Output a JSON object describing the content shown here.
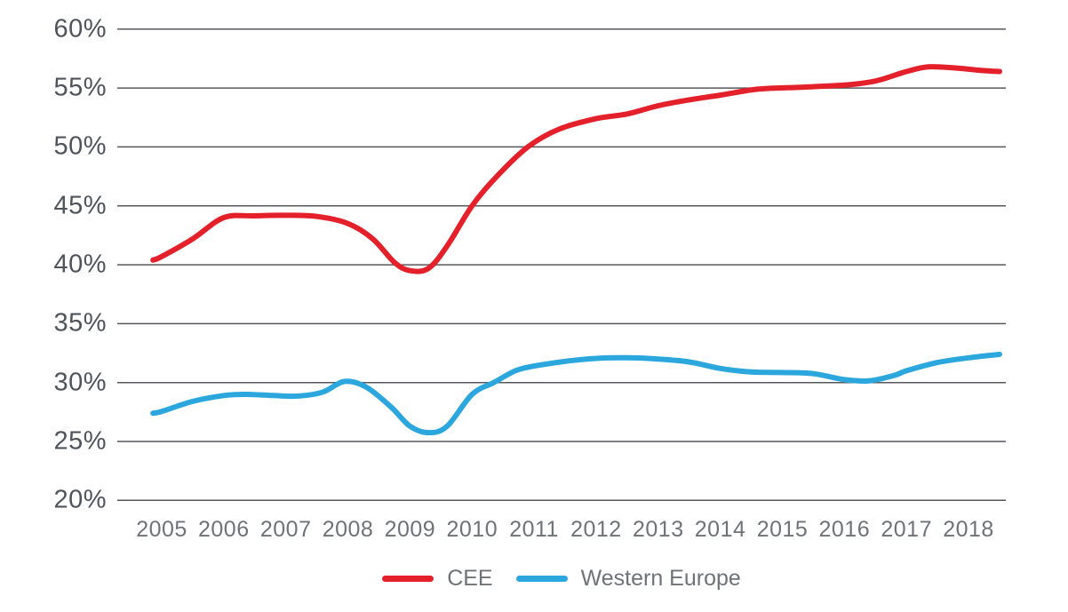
{
  "chart_data": {
    "type": "line",
    "title": "",
    "xlabel": "",
    "ylabel": "",
    "grid": true,
    "legend_position": "bottom-center",
    "ylim": [
      20,
      60
    ],
    "y_tick_labels": [
      "60%",
      "55%",
      "50%",
      "45%",
      "40%",
      "35%",
      "30%",
      "25%",
      "20%"
    ],
    "y_tick_values": [
      60,
      55,
      50,
      45,
      40,
      35,
      30,
      25,
      20
    ],
    "x_tick_labels": [
      "2005",
      "2006",
      "2007",
      "2008",
      "2009",
      "2010",
      "2011",
      "2012",
      "2013",
      "2014",
      "2015",
      "2016",
      "2017",
      "2018"
    ],
    "x_tick_values": [
      2005,
      2006,
      2007,
      2008,
      2009,
      2010,
      2011,
      2012,
      2013,
      2014,
      2015,
      2016,
      2017,
      2018
    ],
    "x_range_drawn": [
      2004.86,
      2018.5
    ],
    "unit": "percent",
    "series": [
      {
        "name": "CEE",
        "color": "#e4202b",
        "annual_values": [
          40.5,
          44.0,
          44.2,
          43.5,
          39.6,
          45.0,
          50.5,
          52.4,
          53.5,
          54.4,
          55.0,
          55.3,
          56.4,
          56.6
        ],
        "samples": [
          [
            2004.86,
            40.4
          ],
          [
            2005.0,
            40.7
          ],
          [
            2005.5,
            42.2
          ],
          [
            2006.0,
            44.0
          ],
          [
            2006.5,
            44.15
          ],
          [
            2007.0,
            44.2
          ],
          [
            2007.5,
            44.1
          ],
          [
            2008.0,
            43.5
          ],
          [
            2008.4,
            42.2
          ],
          [
            2008.75,
            40.2
          ],
          [
            2009.0,
            39.5
          ],
          [
            2009.3,
            39.7
          ],
          [
            2009.6,
            41.6
          ],
          [
            2010.0,
            45.0
          ],
          [
            2010.4,
            47.5
          ],
          [
            2010.9,
            50.0
          ],
          [
            2011.4,
            51.5
          ],
          [
            2012.0,
            52.4
          ],
          [
            2012.5,
            52.8
          ],
          [
            2013.0,
            53.5
          ],
          [
            2013.5,
            54.0
          ],
          [
            2014.0,
            54.4
          ],
          [
            2014.6,
            54.9
          ],
          [
            2015.2,
            55.05
          ],
          [
            2016.0,
            55.25
          ],
          [
            2016.5,
            55.6
          ],
          [
            2017.0,
            56.4
          ],
          [
            2017.35,
            56.8
          ],
          [
            2017.8,
            56.7
          ],
          [
            2018.2,
            56.5
          ],
          [
            2018.5,
            56.4
          ]
        ]
      },
      {
        "name": "Western Europe",
        "color": "#2ba7de",
        "annual_values": [
          27.4,
          28.9,
          28.9,
          30.0,
          26.2,
          29.0,
          31.4,
          32.1,
          32.0,
          31.2,
          30.8,
          30.2,
          31.0,
          32.1
        ],
        "samples": [
          [
            2004.86,
            27.4
          ],
          [
            2005.0,
            27.55
          ],
          [
            2005.5,
            28.4
          ],
          [
            2006.0,
            28.9
          ],
          [
            2006.35,
            29.0
          ],
          [
            2006.8,
            28.9
          ],
          [
            2007.2,
            28.85
          ],
          [
            2007.6,
            29.2
          ],
          [
            2007.95,
            30.1
          ],
          [
            2008.3,
            29.6
          ],
          [
            2008.7,
            27.9
          ],
          [
            2009.0,
            26.3
          ],
          [
            2009.3,
            25.75
          ],
          [
            2009.6,
            26.3
          ],
          [
            2010.0,
            29.0
          ],
          [
            2010.35,
            30.0
          ],
          [
            2010.7,
            31.0
          ],
          [
            2011.0,
            31.4
          ],
          [
            2011.5,
            31.8
          ],
          [
            2012.0,
            32.05
          ],
          [
            2012.5,
            32.1
          ],
          [
            2013.0,
            32.0
          ],
          [
            2013.5,
            31.75
          ],
          [
            2014.0,
            31.2
          ],
          [
            2014.5,
            30.9
          ],
          [
            2015.0,
            30.85
          ],
          [
            2015.5,
            30.75
          ],
          [
            2016.0,
            30.25
          ],
          [
            2016.4,
            30.15
          ],
          [
            2016.8,
            30.6
          ],
          [
            2017.0,
            31.0
          ],
          [
            2017.5,
            31.7
          ],
          [
            2018.0,
            32.1
          ],
          [
            2018.5,
            32.4
          ]
        ]
      }
    ]
  }
}
